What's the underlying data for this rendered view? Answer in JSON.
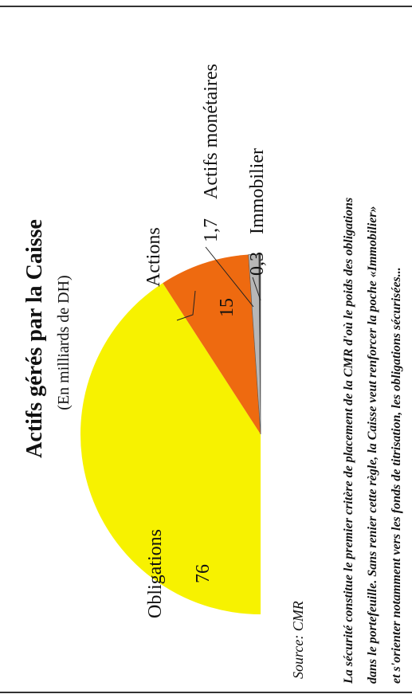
{
  "chart_data": {
    "type": "pie",
    "title": "Actifs gérés par la Caisse",
    "subtitle": "(En milliards de DH)",
    "slices": [
      {
        "label": "Obligations",
        "value": 76,
        "value_label": "76",
        "color": "#f7f200"
      },
      {
        "label": "Actions",
        "value": 15,
        "value_label": "15",
        "color": "#ee6a10"
      },
      {
        "label": "Actifs monétaires",
        "value": 1.7,
        "value_label": "1,7",
        "color": "#b7b7b7"
      },
      {
        "label": "Immobilier",
        "value": 0.3,
        "value_label": "0,3",
        "color": "#3b3b3b"
      }
    ],
    "source": "Source: CMR",
    "caption_lines": [
      "La sécurité constitue le premier critère de placement de la CMR d'où le poids des obligations",
      "dans le portefeuille. Sans renier cette règle, la Caisse veut renforcer la poche «Immobilier»",
      "et s'orienter notamment vers les fonds de titrisation, les obligations sécurisées..."
    ]
  }
}
